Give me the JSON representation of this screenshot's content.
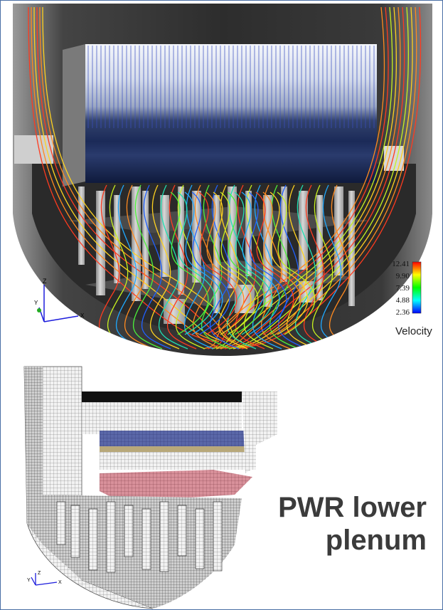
{
  "caption": {
    "line1": "PWR lower",
    "line2": "plenum"
  },
  "legend": {
    "title": "Velocity",
    "ticks": [
      "12.41",
      "9.90",
      "7.39",
      "4.88",
      "2.36"
    ],
    "colors": [
      "#ff0000",
      "#ffff00",
      "#00ff00",
      "#00ffff",
      "#0000ff"
    ]
  },
  "axes_triad_top": {
    "z": "Z",
    "y": "Y",
    "x": "X"
  },
  "axes_triad_bottom": {
    "z": "Z",
    "y": "Y",
    "x": "X"
  }
}
